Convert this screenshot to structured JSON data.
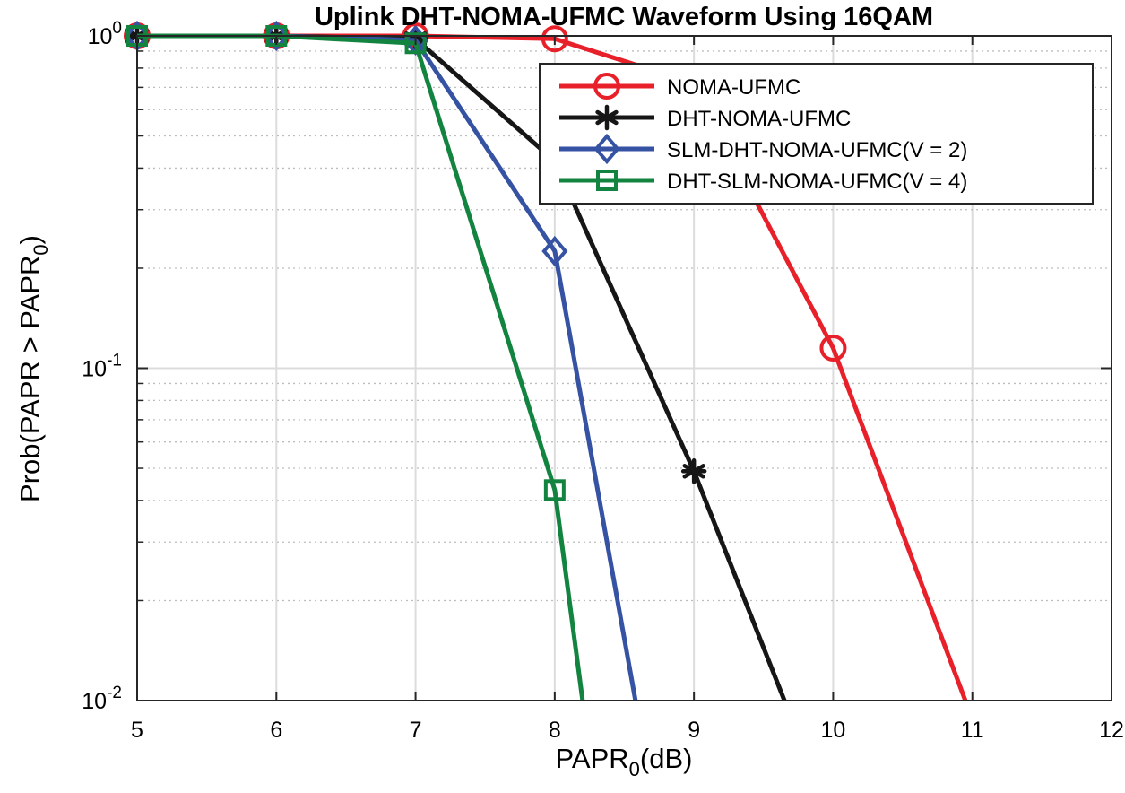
{
  "chart_data": {
    "type": "line",
    "title": "Uplink DHT-NOMA-UFMC Waveform Using 16QAM",
    "xlabel": {
      "base": "PAPR",
      "sub": "0",
      "suffix": "(dB)"
    },
    "ylabel": {
      "base": "Prob(PAPR > PAPR",
      "sub": "0",
      "suffix": ")"
    },
    "x_ticks": [
      "5",
      "6",
      "7",
      "8",
      "9",
      "10",
      "11",
      "12"
    ],
    "y_ticks": [
      {
        "base": "10",
        "exp": "0",
        "value": 1
      },
      {
        "base": "10",
        "exp": "-1",
        "value": 0.1
      },
      {
        "base": "10",
        "exp": "-2",
        "value": 0.01
      }
    ],
    "xlim": [
      5,
      12
    ],
    "ylim": [
      0.01,
      1
    ],
    "y_scale": "log",
    "grid": true,
    "legend_position": "top-right",
    "series": [
      {
        "name": "NOMA-UFMC",
        "color": "#e8202a",
        "marker": "circle",
        "x": [
          5,
          6,
          7,
          8,
          9,
          10,
          10.95
        ],
        "y": [
          1.0,
          1.0,
          1.0,
          0.98,
          0.72,
          0.115,
          0.01
        ]
      },
      {
        "name": "DHT-NOMA-UFMC",
        "color": "#161616",
        "marker": "asterisk",
        "x": [
          5,
          6,
          7,
          8,
          9,
          9.65
        ],
        "y": [
          1.0,
          1.0,
          0.98,
          0.42,
          0.049,
          0.01
        ]
      },
      {
        "name": "SLM-DHT-NOMA-UFMC(V = 2)",
        "color": "#3552a3",
        "marker": "diamond",
        "x": [
          5,
          6,
          7,
          8,
          8.58
        ],
        "y": [
          1.0,
          1.0,
          0.97,
          0.225,
          0.01
        ]
      },
      {
        "name": "DHT-SLM-NOMA-UFMC(V = 4)",
        "color": "#12843f",
        "marker": "square",
        "x": [
          5,
          6,
          7,
          8,
          8.2
        ],
        "y": [
          1.0,
          1.0,
          0.95,
          0.043,
          0.01
        ]
      }
    ]
  }
}
